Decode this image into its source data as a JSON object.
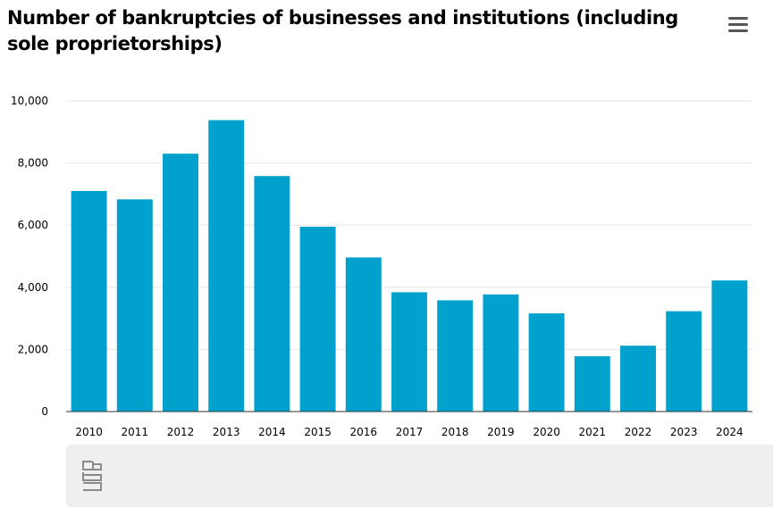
{
  "chart_data": {
    "type": "bar",
    "title": "Number of bankruptcies of businesses and institutions (including sole proprietorships)",
    "categories": [
      "2010",
      "2011",
      "2012",
      "2013",
      "2014",
      "2015",
      "2016",
      "2017",
      "2018",
      "2019",
      "2020",
      "2021",
      "2022",
      "2023",
      "2024"
    ],
    "values": [
      7100,
      6830,
      8300,
      9380,
      7580,
      5950,
      4960,
      3840,
      3580,
      3770,
      3160,
      1780,
      2120,
      3230,
      4220
    ],
    "xlabel": "",
    "ylabel": "",
    "ylim": [
      0,
      10000
    ],
    "yticks": [
      "0",
      "2,000",
      "4,000",
      "6,000",
      "8,000",
      "10,000"
    ],
    "ytick_values": [
      0,
      2000,
      4000,
      6000,
      8000,
      10000
    ],
    "grid": true,
    "legend": "none",
    "colors": {
      "bar": "#00a1cd",
      "grid": "#e6e6e6",
      "axis": "#333333"
    }
  },
  "toolbar": {
    "menu_icon": "hamburger-menu-icon"
  },
  "footer": {
    "logo_icon": "cbs-logo-icon"
  }
}
